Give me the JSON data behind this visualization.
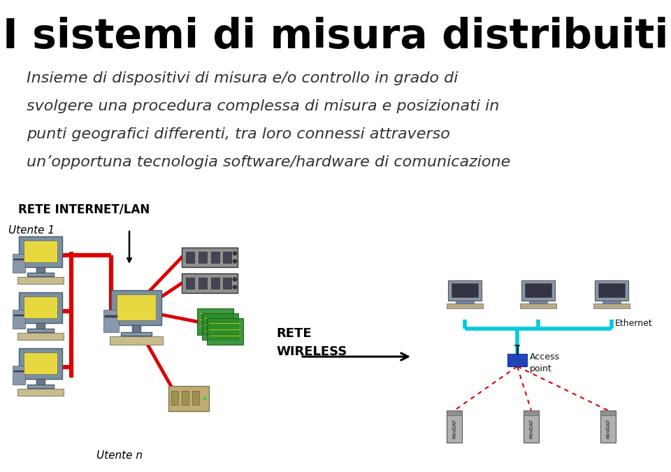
{
  "title": "I sistemi di misura distribuiti",
  "subtitle_lines": [
    "Insieme di dispositivi di misura e/o controllo in grado di",
    "svolgere una procedura complessa di misura e posizionati in",
    "punti geografici differenti, tra loro connessi attraverso",
    "un’opportuna tecnologia software/hardware di comunicazione"
  ],
  "label_rete_internet": "RETE INTERNET/LAN",
  "label_utente1": "Utente 1",
  "label_utenten": "Utente n",
  "label_rete_wireless": "RETE\nWIRELESS",
  "label_ethernet": "Ethernet",
  "label_access_point": "Access\npoint",
  "bg_color": "#ffffff",
  "title_color": "#000000",
  "subtitle_color": "#333333",
  "red_color": "#dd0000",
  "cyan_color": "#00c8e0",
  "dashed_red": "#dd0000",
  "title_fontsize": 42,
  "subtitle_fontsize": 16,
  "fig_w": 9.6,
  "fig_h": 6.75,
  "dpi": 100
}
